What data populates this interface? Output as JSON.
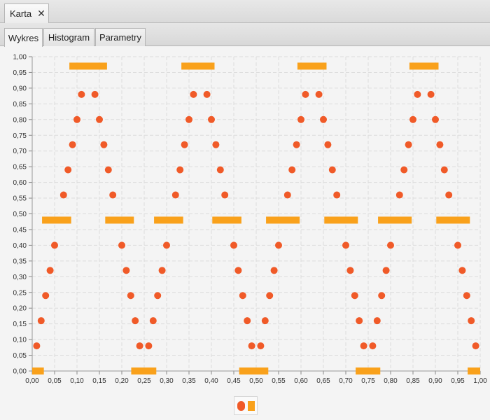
{
  "window": {
    "tab_title": "Karta",
    "close_label": "✕"
  },
  "subtabs": [
    "Wykres",
    "Histogram",
    "Parametry"
  ],
  "colors": {
    "points": "#f05a28",
    "bars": "#f9a11b",
    "grid": "#dcdcdc",
    "plot_bg": "#f4f4f4"
  },
  "legend": {
    "icons": [
      "circle-series-icon",
      "bar-series-icon"
    ]
  },
  "chart_data": {
    "type": "scatter",
    "xlim": [
      0,
      1
    ],
    "ylim": [
      0,
      1
    ],
    "x_ticks": [
      "0,00",
      "0,05",
      "0,10",
      "0,15",
      "0,20",
      "0,25",
      "0,30",
      "0,35",
      "0,40",
      "0,45",
      "0,50",
      "0,55",
      "0,60",
      "0,65",
      "0,70",
      "0,75",
      "0,80",
      "0,85",
      "0,90",
      "0,95",
      "1,00"
    ],
    "y_ticks": [
      "0,00",
      "0,05",
      "0,10",
      "0,15",
      "0,20",
      "0,25",
      "0,30",
      "0,35",
      "0,40",
      "0,45",
      "0,50",
      "0,55",
      "0,60",
      "0,65",
      "0,70",
      "0,75",
      "0,80",
      "0,85",
      "0,90",
      "0,95",
      "1,00"
    ],
    "grid": true,
    "series": [
      {
        "marker": "circle",
        "points": [
          [
            0.01,
            0.08
          ],
          [
            0.02,
            0.16
          ],
          [
            0.03,
            0.24
          ],
          [
            0.04,
            0.32
          ],
          [
            0.05,
            0.4
          ],
          [
            0.07,
            0.56
          ],
          [
            0.08,
            0.64
          ],
          [
            0.09,
            0.72
          ],
          [
            0.1,
            0.8
          ],
          [
            0.11,
            0.88
          ],
          [
            0.14,
            0.88
          ],
          [
            0.15,
            0.8
          ],
          [
            0.16,
            0.72
          ],
          [
            0.17,
            0.64
          ],
          [
            0.18,
            0.56
          ],
          [
            0.2,
            0.4
          ],
          [
            0.21,
            0.32
          ],
          [
            0.22,
            0.24
          ],
          [
            0.23,
            0.16
          ],
          [
            0.24,
            0.08
          ],
          [
            0.26,
            0.08
          ],
          [
            0.27,
            0.16
          ],
          [
            0.28,
            0.24
          ],
          [
            0.29,
            0.32
          ],
          [
            0.3,
            0.4
          ],
          [
            0.32,
            0.56
          ],
          [
            0.33,
            0.64
          ],
          [
            0.34,
            0.72
          ],
          [
            0.35,
            0.8
          ],
          [
            0.36,
            0.88
          ],
          [
            0.39,
            0.88
          ],
          [
            0.4,
            0.8
          ],
          [
            0.41,
            0.72
          ],
          [
            0.42,
            0.64
          ],
          [
            0.43,
            0.56
          ],
          [
            0.45,
            0.4
          ],
          [
            0.46,
            0.32
          ],
          [
            0.47,
            0.24
          ],
          [
            0.48,
            0.16
          ],
          [
            0.49,
            0.08
          ],
          [
            0.51,
            0.08
          ],
          [
            0.52,
            0.16
          ],
          [
            0.53,
            0.24
          ],
          [
            0.54,
            0.32
          ],
          [
            0.55,
            0.4
          ],
          [
            0.57,
            0.56
          ],
          [
            0.58,
            0.64
          ],
          [
            0.59,
            0.72
          ],
          [
            0.6,
            0.8
          ],
          [
            0.61,
            0.88
          ],
          [
            0.64,
            0.88
          ],
          [
            0.65,
            0.8
          ],
          [
            0.66,
            0.72
          ],
          [
            0.67,
            0.64
          ],
          [
            0.68,
            0.56
          ],
          [
            0.7,
            0.4
          ],
          [
            0.71,
            0.32
          ],
          [
            0.72,
            0.24
          ],
          [
            0.73,
            0.16
          ],
          [
            0.74,
            0.08
          ],
          [
            0.76,
            0.08
          ],
          [
            0.77,
            0.16
          ],
          [
            0.78,
            0.24
          ],
          [
            0.79,
            0.32
          ],
          [
            0.8,
            0.4
          ],
          [
            0.82,
            0.56
          ],
          [
            0.83,
            0.64
          ],
          [
            0.84,
            0.72
          ],
          [
            0.85,
            0.8
          ],
          [
            0.86,
            0.88
          ],
          [
            0.89,
            0.88
          ],
          [
            0.9,
            0.8
          ],
          [
            0.91,
            0.72
          ],
          [
            0.92,
            0.64
          ],
          [
            0.93,
            0.56
          ],
          [
            0.95,
            0.4
          ],
          [
            0.96,
            0.32
          ],
          [
            0.97,
            0.24
          ],
          [
            0.98,
            0.16
          ],
          [
            0.99,
            0.08
          ]
        ]
      },
      {
        "marker": "bar",
        "segments": [
          [
            0.0,
            0.026,
            0.0
          ],
          [
            0.022,
            0.087,
            0.48
          ],
          [
            0.083,
            0.167,
            0.97
          ],
          [
            0.163,
            0.227,
            0.48
          ],
          [
            0.221,
            0.277,
            0.0
          ],
          [
            0.272,
            0.337,
            0.48
          ],
          [
            0.333,
            0.407,
            0.97
          ],
          [
            0.402,
            0.467,
            0.48
          ],
          [
            0.462,
            0.527,
            0.0
          ],
          [
            0.522,
            0.597,
            0.48
          ],
          [
            0.592,
            0.657,
            0.97
          ],
          [
            0.652,
            0.727,
            0.48
          ],
          [
            0.722,
            0.777,
            0.0
          ],
          [
            0.772,
            0.847,
            0.48
          ],
          [
            0.842,
            0.907,
            0.97
          ],
          [
            0.902,
            0.977,
            0.48
          ],
          [
            0.972,
            1.0,
            0.0
          ]
        ]
      }
    ]
  }
}
